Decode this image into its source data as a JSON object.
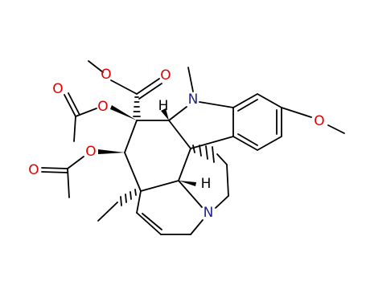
{
  "atoms": [
    {
      "label": "O"
    },
    {
      "label": "O"
    },
    {
      "label": "O"
    },
    {
      "label": "O"
    },
    {
      "label": "O"
    },
    {
      "label": "O"
    },
    {
      "label": "O"
    },
    {
      "label": "N"
    },
    {
      "label": "N"
    },
    {
      "label": "H"
    },
    {
      "label": "H"
    }
  ]
}
